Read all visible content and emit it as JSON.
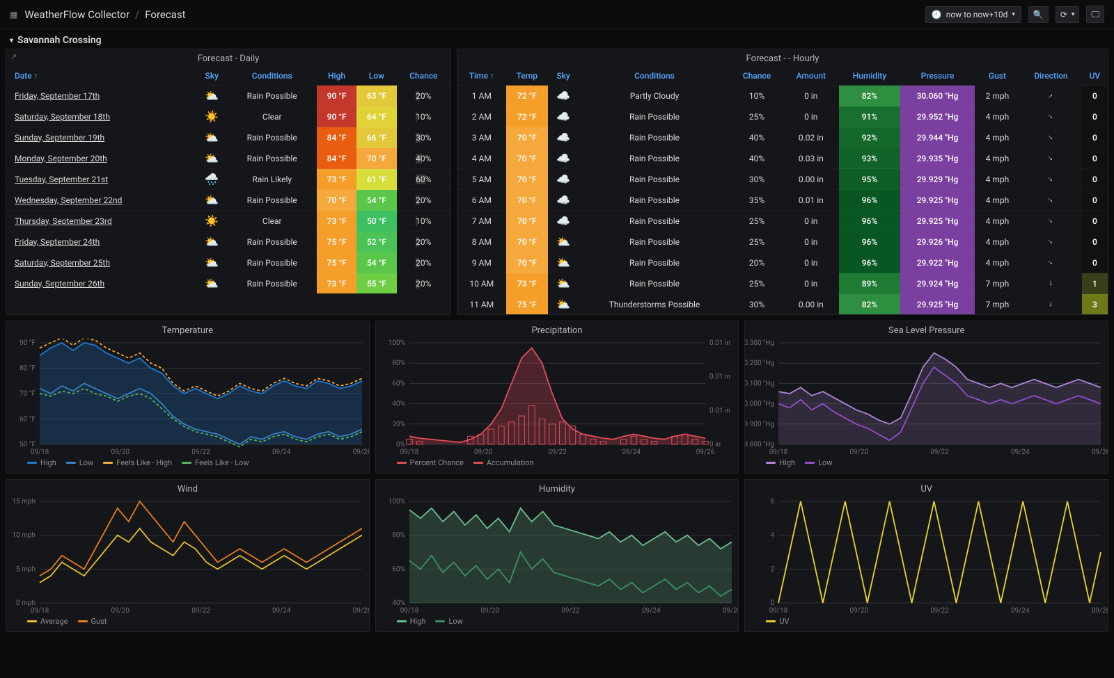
{
  "header": {
    "app": "WeatherFlow Collector",
    "page": "Forecast",
    "time_range": "now to now+10d"
  },
  "section": {
    "title": "Savannah Crossing"
  },
  "temp_colors": {
    "90": "#c4382b",
    "84": "#e85d0f",
    "80": "#f07d1a",
    "75": "#f59f2a",
    "73": "#f59f2a",
    "72": "#f59f2a",
    "70": "#f5a83c",
    "66": "#e3c93a",
    "64": "#e0d237",
    "63": "#e3c93a",
    "61": "#d7de3a",
    "55": "#6fce44",
    "54": "#5ac74a",
    "52": "#4ac356",
    "50": "#3ebf62"
  },
  "humidity_colors": {
    "82": "#2d8f3f",
    "89": "#1f7a34",
    "91": "#196f30",
    "92": "#14682c",
    "93": "#116329",
    "95": "#0d5d25",
    "96": "#085722"
  },
  "pressure_color": "#7b3fa0",
  "daily": {
    "title": "Forecast - Daily",
    "columns": [
      "Date ↑",
      "Sky",
      "Conditions",
      "High",
      "Low",
      "Chance"
    ],
    "rows": [
      {
        "date": "Friday, September 17th",
        "sky": "partly-cloudy",
        "cond": "Rain Possible",
        "high": "90 °F",
        "high_v": 90,
        "low": "63 °F",
        "low_v": 63,
        "chance": 20
      },
      {
        "date": "Saturday, September 18th",
        "sky": "sunny",
        "cond": "Clear",
        "high": "90 °F",
        "high_v": 90,
        "low": "64 °F",
        "low_v": 64,
        "chance": 10
      },
      {
        "date": "Sunday, September 19th",
        "sky": "partly-cloudy",
        "cond": "Rain Possible",
        "high": "84 °F",
        "high_v": 84,
        "low": "66 °F",
        "low_v": 66,
        "chance": 30
      },
      {
        "date": "Monday, September 20th",
        "sky": "partly-cloudy",
        "cond": "Rain Possible",
        "high": "84 °F",
        "high_v": 84,
        "low": "70 °F",
        "low_v": 70,
        "chance": 40
      },
      {
        "date": "Tuesday, September 21st",
        "sky": "rain",
        "cond": "Rain Likely",
        "high": "73 °F",
        "high_v": 73,
        "low": "61 °F",
        "low_v": 61,
        "chance": 60
      },
      {
        "date": "Wednesday, September 22nd",
        "sky": "partly-cloudy",
        "cond": "Rain Possible",
        "high": "70 °F",
        "high_v": 70,
        "low": "54 °F",
        "low_v": 54,
        "chance": 20
      },
      {
        "date": "Thursday, September 23rd",
        "sky": "sunny",
        "cond": "Clear",
        "high": "73 °F",
        "high_v": 73,
        "low": "50 °F",
        "low_v": 50,
        "chance": 10
      },
      {
        "date": "Friday, September 24th",
        "sky": "partly-cloudy",
        "cond": "Rain Possible",
        "high": "75 °F",
        "high_v": 75,
        "low": "52 °F",
        "low_v": 52,
        "chance": 20
      },
      {
        "date": "Saturday, September 25th",
        "sky": "partly-cloudy",
        "cond": "Rain Possible",
        "high": "75 °F",
        "high_v": 75,
        "low": "54 °F",
        "low_v": 54,
        "chance": 20
      },
      {
        "date": "Sunday, September 26th",
        "sky": "partly-cloudy",
        "cond": "Rain Possible",
        "high": "73 °F",
        "high_v": 73,
        "low": "55 °F",
        "low_v": 55,
        "chance": 20
      }
    ]
  },
  "hourly": {
    "title": "Forecast - - Hourly",
    "columns": [
      "Time ↑",
      "Temp",
      "Sky",
      "Conditions",
      "Chance",
      "Amount",
      "Humidity",
      "Pressure",
      "Gust",
      "Direction",
      "UV"
    ],
    "rows": [
      {
        "time": "1 AM",
        "temp": "72 °F",
        "temp_v": 72,
        "sky": "partly-cloudy-night",
        "cond": "Partly Cloudy",
        "chance": 10,
        "amount": "0 in",
        "humidity": 82,
        "pressure": "30.060 \"Hg",
        "gust": "2 mph",
        "dir": 45,
        "uv": 0
      },
      {
        "time": "2 AM",
        "temp": "72 °F",
        "temp_v": 72,
        "sky": "partly-cloudy-night",
        "cond": "Rain Possible",
        "chance": 25,
        "amount": "0 in",
        "humidity": 91,
        "pressure": "29.952 \"Hg",
        "gust": "4 mph",
        "dir": 135,
        "uv": 0
      },
      {
        "time": "3 AM",
        "temp": "70 °F",
        "temp_v": 70,
        "sky": "partly-cloudy-night",
        "cond": "Rain Possible",
        "chance": 40,
        "amount": "0.02 in",
        "humidity": 92,
        "pressure": "29.944 \"Hg",
        "gust": "4 mph",
        "dir": 135,
        "uv": 0
      },
      {
        "time": "4 AM",
        "temp": "70 °F",
        "temp_v": 70,
        "sky": "partly-cloudy-night",
        "cond": "Rain Possible",
        "chance": 40,
        "amount": "0.03 in",
        "humidity": 93,
        "pressure": "29.935 \"Hg",
        "gust": "4 mph",
        "dir": 135,
        "uv": 0
      },
      {
        "time": "5 AM",
        "temp": "70 °F",
        "temp_v": 70,
        "sky": "partly-cloudy-night",
        "cond": "Rain Possible",
        "chance": 30,
        "amount": "0.00 in",
        "humidity": 95,
        "pressure": "29.929 \"Hg",
        "gust": "4 mph",
        "dir": 135,
        "uv": 0
      },
      {
        "time": "6 AM",
        "temp": "70 °F",
        "temp_v": 70,
        "sky": "partly-cloudy-night",
        "cond": "Rain Possible",
        "chance": 35,
        "amount": "0.01 in",
        "humidity": 96,
        "pressure": "29.925 \"Hg",
        "gust": "4 mph",
        "dir": 135,
        "uv": 0
      },
      {
        "time": "7 AM",
        "temp": "70 °F",
        "temp_v": 70,
        "sky": "partly-cloudy-night",
        "cond": "Rain Possible",
        "chance": 25,
        "amount": "0 in",
        "humidity": 96,
        "pressure": "29.925 \"Hg",
        "gust": "4 mph",
        "dir": 135,
        "uv": 0
      },
      {
        "time": "8 AM",
        "temp": "70 °F",
        "temp_v": 70,
        "sky": "partly-cloudy",
        "cond": "Rain Possible",
        "chance": 25,
        "amount": "0 in",
        "humidity": 96,
        "pressure": "29.926 \"Hg",
        "gust": "4 mph",
        "dir": 135,
        "uv": 0
      },
      {
        "time": "9 AM",
        "temp": "70 °F",
        "temp_v": 70,
        "sky": "partly-cloudy",
        "cond": "Rain Possible",
        "chance": 20,
        "amount": "0 in",
        "humidity": 96,
        "pressure": "29.922 \"Hg",
        "gust": "4 mph",
        "dir": 135,
        "uv": 0
      },
      {
        "time": "10 AM",
        "temp": "73 °F",
        "temp_v": 73,
        "sky": "partly-cloudy",
        "cond": "Rain Possible",
        "chance": 25,
        "amount": "0 in",
        "humidity": 89,
        "pressure": "29.924 \"Hg",
        "gust": "7 mph",
        "dir": 180,
        "uv": 1
      },
      {
        "time": "11 AM",
        "temp": "75 °F",
        "temp_v": 75,
        "sky": "partly-cloudy",
        "cond": "Thunderstorms Possible",
        "chance": 30,
        "amount": "0.00 in",
        "humidity": 82,
        "pressure": "29.925 \"Hg",
        "gust": "7 mph",
        "dir": 180,
        "uv": 3
      }
    ],
    "uv_colors": {
      "0": "#111",
      "1": "#3a3f1a",
      "3": "#6e7a1a"
    }
  },
  "charts": {
    "x_ticks": [
      "09/18",
      "09/20",
      "09/22",
      "09/24",
      "09/26"
    ],
    "temperature": {
      "title": "Temperature",
      "ylim": [
        50,
        90
      ],
      "ytick_step": 10,
      "yunit": " °F",
      "series": {
        "high": {
          "label": "High",
          "color": "#1f78d1",
          "fill": "rgba(31,120,209,0.25)",
          "values": [
            85,
            88,
            90,
            87,
            90,
            89,
            86,
            84,
            82,
            84,
            80,
            78,
            73,
            70,
            72,
            70,
            68,
            70,
            73,
            71,
            70,
            73,
            75,
            73,
            72,
            75,
            74,
            72,
            73,
            75
          ]
        },
        "low": {
          "label": "Low",
          "color": "#3880c0",
          "values": [
            72,
            70,
            73,
            71,
            74,
            72,
            70,
            68,
            70,
            72,
            70,
            66,
            61,
            58,
            56,
            55,
            54,
            52,
            50,
            53,
            52,
            54,
            55,
            53,
            52,
            54,
            55,
            53,
            54,
            56
          ]
        },
        "feels_high": {
          "label": "Feels Like - High",
          "color": "#f2a93b",
          "dash": true,
          "values": [
            88,
            90,
            92,
            89,
            92,
            91,
            88,
            86,
            84,
            86,
            82,
            80,
            74,
            71,
            73,
            71,
            69,
            71,
            74,
            72,
            71,
            74,
            76,
            74,
            73,
            76,
            75,
            73,
            74,
            76
          ]
        },
        "feels_low": {
          "label": "Feels Like - Low",
          "color": "#56b35b",
          "dash": true,
          "values": [
            70,
            69,
            71,
            70,
            72,
            70,
            69,
            67,
            69,
            70,
            68,
            64,
            60,
            57,
            55,
            54,
            53,
            51,
            49,
            52,
            51,
            53,
            54,
            52,
            51,
            53,
            54,
            52,
            53,
            55
          ]
        }
      }
    },
    "precipitation": {
      "title": "Precipitation",
      "ylim": [
        0,
        100
      ],
      "ytick_step": 20,
      "yunit": "%",
      "y2lim": [
        0,
        0.012
      ],
      "y2_ticks": [
        "0 in",
        "0.01 in",
        "0.01 in",
        "0.01 in"
      ],
      "chance": {
        "label": "Percent Chance",
        "color": "#e24d5b",
        "fill": "rgba(226,77,91,0.28)",
        "values": [
          8,
          6,
          5,
          4,
          3,
          2,
          5,
          10,
          20,
          35,
          60,
          85,
          95,
          80,
          50,
          25,
          15,
          10,
          8,
          6,
          5,
          8,
          10,
          8,
          6,
          5,
          8,
          10,
          8,
          6
        ]
      },
      "bars": {
        "label": "Accumulation",
        "color": "#e24d5b",
        "values": [
          5,
          3,
          0,
          0,
          0,
          0,
          8,
          10,
          15,
          18,
          22,
          28,
          38,
          25,
          20,
          22,
          18,
          10,
          5,
          3,
          0,
          5,
          8,
          5,
          3,
          0,
          8,
          10,
          5,
          3
        ]
      }
    },
    "pressure": {
      "title": "Sea Level Pressure",
      "ylim": [
        29.8,
        30.3
      ],
      "ytick_step": 0.1,
      "yunit": " \"Hg",
      "series": {
        "high": {
          "label": "High",
          "color": "#b085d8",
          "fill": "rgba(176,133,216,0.18)",
          "values": [
            30.06,
            30.05,
            30.08,
            30.04,
            30.06,
            30.03,
            30.0,
            29.97,
            29.95,
            29.92,
            29.9,
            29.93,
            30.05,
            30.18,
            30.25,
            30.22,
            30.18,
            30.12,
            30.1,
            30.08,
            30.1,
            30.08,
            30.1,
            30.12,
            30.1,
            30.08,
            30.1,
            30.12,
            30.1,
            30.08
          ]
        },
        "low": {
          "label": "Low",
          "color": "#9050c8",
          "values": [
            30.0,
            29.98,
            30.02,
            29.97,
            30.0,
            29.96,
            29.93,
            29.9,
            29.88,
            29.85,
            29.82,
            29.86,
            29.98,
            30.1,
            30.18,
            30.14,
            30.1,
            30.04,
            30.02,
            30.0,
            30.02,
            30.0,
            30.02,
            30.04,
            30.02,
            30.0,
            30.02,
            30.04,
            30.02,
            30.0
          ]
        }
      }
    },
    "wind": {
      "title": "Wind",
      "ylim": [
        0,
        15
      ],
      "ytick_step": 5,
      "yunit": " mph",
      "series": {
        "avg": {
          "label": "Average",
          "color": "#e8c02a",
          "values": [
            3,
            4,
            6,
            5,
            4,
            6,
            8,
            10,
            9,
            11,
            9,
            8,
            7,
            9,
            8,
            6,
            5,
            6,
            7,
            6,
            5,
            6,
            7,
            6,
            5,
            6,
            7,
            8,
            9,
            10
          ]
        },
        "gust": {
          "label": "Gust",
          "color": "#e87d1a",
          "values": [
            4,
            5,
            7,
            6,
            5,
            8,
            11,
            14,
            12,
            15,
            13,
            11,
            9,
            12,
            10,
            8,
            6,
            7,
            8,
            7,
            6,
            7,
            8,
            7,
            6,
            7,
            8,
            9,
            10,
            11
          ]
        }
      }
    },
    "humidity": {
      "title": "Humidity",
      "ylim": [
        40,
        100
      ],
      "ytick_step": 20,
      "yunit": "%",
      "series": {
        "high": {
          "label": "High",
          "color": "#6fbf8f",
          "fill": "rgba(111,191,143,0.22)",
          "values": [
            95,
            90,
            96,
            88,
            94,
            86,
            92,
            84,
            90,
            82,
            96,
            88,
            94,
            86,
            84,
            82,
            80,
            78,
            82,
            76,
            80,
            74,
            78,
            82,
            76,
            80,
            74,
            78,
            72,
            76
          ]
        },
        "low": {
          "label": "Low",
          "color": "#3d8f63",
          "values": [
            65,
            60,
            68,
            58,
            64,
            56,
            62,
            54,
            60,
            52,
            70,
            60,
            66,
            58,
            56,
            54,
            52,
            50,
            54,
            48,
            52,
            46,
            50,
            54,
            48,
            52,
            46,
            50,
            44,
            48
          ]
        }
      }
    },
    "uv": {
      "title": "UV",
      "ylim": [
        0,
        6
      ],
      "ytick_step": 2,
      "yunit": "",
      "series": {
        "uv": {
          "label": "UV",
          "color": "#e8d22a",
          "values": [
            0,
            3,
            6,
            3,
            0,
            3,
            6,
            3,
            0,
            3,
            6,
            3,
            0,
            3,
            6,
            3,
            0,
            3,
            6,
            3,
            0,
            3,
            6,
            3,
            0,
            3,
            6,
            3,
            0,
            3
          ]
        }
      }
    }
  }
}
